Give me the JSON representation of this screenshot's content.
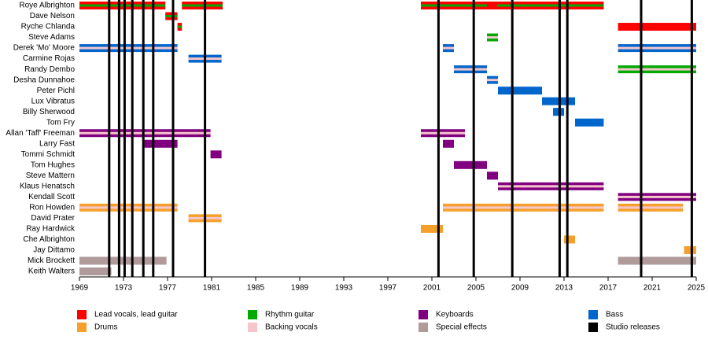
{
  "chart_data": {
    "type": "timeline",
    "categories": [
      "Roye Albrighton",
      "Dave Nelson",
      "Ryche Chlanda",
      "Steve Adams",
      "Derek 'Mo' Moore",
      "Carmine Rojas",
      "Randy Dembo",
      "Desha Dunnahoe",
      "Peter Pichl",
      "Lux Vibratus",
      "Billy Sherwood",
      "Tom Fry",
      "Allan 'Taff' Freeman",
      "Larry Fast",
      "Tommi Schmidt",
      "Tom Hughes",
      "Steve Mattern",
      "Klaus Henatsch",
      "Kendall Scott",
      "Ron Howden",
      "David Prater",
      "Ray Hardwick",
      "Che Albrighton",
      "Jay Dittamo",
      "Mick Brockett",
      "Keith Walters"
    ],
    "legend": [
      {
        "name": "Lead vocals, lead guitar",
        "color": "#ff0000"
      },
      {
        "name": "Rhythm guitar",
        "color": "#00aa00"
      },
      {
        "name": "Keyboards",
        "color": "#800080"
      },
      {
        "name": "Bass",
        "color": "#0066cc"
      },
      {
        "name": "Drums",
        "color": "#f5a02a"
      },
      {
        "name": "Backing vocals",
        "color": "#f6c6cb"
      },
      {
        "name": "Special effects",
        "color": "#b09a9a"
      },
      {
        "name": "Studio releases",
        "color": "#000000"
      }
    ],
    "bars": [
      {
        "member": 0,
        "start": 1969,
        "end": 1976.8,
        "role": 0,
        "stripe": 1
      },
      {
        "member": 0,
        "start": 1978.3,
        "end": 1982,
        "role": 0,
        "stripe": 1
      },
      {
        "member": 0,
        "start": 2000,
        "end": 2016.6,
        "role": 0,
        "stripe": 1
      },
      {
        "member": 0,
        "start": 2006,
        "end": 2006.9,
        "role": 0
      },
      {
        "member": 1,
        "start": 1976.8,
        "end": 1977.9,
        "role": 0,
        "stripe": 1
      },
      {
        "member": 2,
        "start": 1977.9,
        "end": 1978.3,
        "role": 0,
        "stripe": 1
      },
      {
        "member": 2,
        "start": 2017.9,
        "end": 2025,
        "role": 0
      },
      {
        "member": 3,
        "start": 2006,
        "end": 2007,
        "role": 1,
        "stripe": 5
      },
      {
        "member": 4,
        "start": 1969,
        "end": 1977.9,
        "role": 3,
        "stripe": 5
      },
      {
        "member": 4,
        "start": 2002,
        "end": 2003,
        "role": 3,
        "stripe": 5
      },
      {
        "member": 4,
        "start": 2017.9,
        "end": 2025,
        "role": 3,
        "stripe": 5
      },
      {
        "member": 5,
        "start": 1978.9,
        "end": 1981.9,
        "role": 3,
        "stripe": 5
      },
      {
        "member": 6,
        "start": 2003,
        "end": 2006,
        "role": 3,
        "stripe": 5
      },
      {
        "member": 6,
        "start": 2017.9,
        "end": 2025,
        "role": 1,
        "stripe": 5
      },
      {
        "member": 7,
        "start": 2006,
        "end": 2007,
        "role": 3,
        "stripe": 5
      },
      {
        "member": 8,
        "start": 2007,
        "end": 2011,
        "role": 3
      },
      {
        "member": 9,
        "start": 2011,
        "end": 2014,
        "role": 3
      },
      {
        "member": 10,
        "start": 2012,
        "end": 2013,
        "role": 3
      },
      {
        "member": 11,
        "start": 2014,
        "end": 2016.6,
        "role": 3
      },
      {
        "member": 12,
        "start": 1969,
        "end": 1980.9,
        "role": 2,
        "stripe": 5
      },
      {
        "member": 12,
        "start": 2000,
        "end": 2004,
        "role": 2,
        "stripe": 5
      },
      {
        "member": 13,
        "start": 1974.9,
        "end": 1977.9,
        "role": 2
      },
      {
        "member": 13,
        "start": 2002,
        "end": 2003,
        "role": 2
      },
      {
        "member": 14,
        "start": 1980.9,
        "end": 1981.9,
        "role": 2
      },
      {
        "member": 15,
        "start": 2003,
        "end": 2006,
        "role": 2
      },
      {
        "member": 16,
        "start": 2006,
        "end": 2007,
        "role": 2
      },
      {
        "member": 17,
        "start": 2007,
        "end": 2016.6,
        "role": 2,
        "stripe": 5
      },
      {
        "member": 18,
        "start": 2017.9,
        "end": 2025,
        "role": 2,
        "stripe": 5
      },
      {
        "member": 19,
        "start": 1969,
        "end": 1977.9,
        "role": 4,
        "stripe": 5
      },
      {
        "member": 19,
        "start": 2002,
        "end": 2016.6,
        "role": 4,
        "stripe": 5
      },
      {
        "member": 19,
        "start": 2017.9,
        "end": 2023.8,
        "role": 4,
        "stripe": 5
      },
      {
        "member": 20,
        "start": 1978.9,
        "end": 1981.9,
        "role": 4,
        "stripe": 5
      },
      {
        "member": 21,
        "start": 2000,
        "end": 2002,
        "role": 4
      },
      {
        "member": 22,
        "start": 2013,
        "end": 2014,
        "role": 4
      },
      {
        "member": 23,
        "start": 2023.9,
        "end": 2025,
        "role": 4
      },
      {
        "member": 24,
        "start": 1969,
        "end": 1976.9,
        "role": 6
      },
      {
        "member": 24,
        "start": 2017.9,
        "end": 2025,
        "role": 6
      },
      {
        "member": 25,
        "start": 1969,
        "end": 1971.9,
        "role": 6
      }
    ],
    "releases": [
      1971.7,
      1972.6,
      1973.1,
      1973.8,
      1974.8,
      1975.7,
      1977.5,
      1980.4,
      2001.6,
      2004.8,
      2008.3,
      2012.6,
      2013.3,
      2020,
      2024.6
    ],
    "xlim": [
      1969,
      2025
    ],
    "xticks": [
      1969,
      1973,
      1977,
      1981,
      1985,
      1989,
      1993,
      1997,
      2001,
      2005,
      2009,
      2013,
      2017,
      2021,
      2025
    ]
  }
}
